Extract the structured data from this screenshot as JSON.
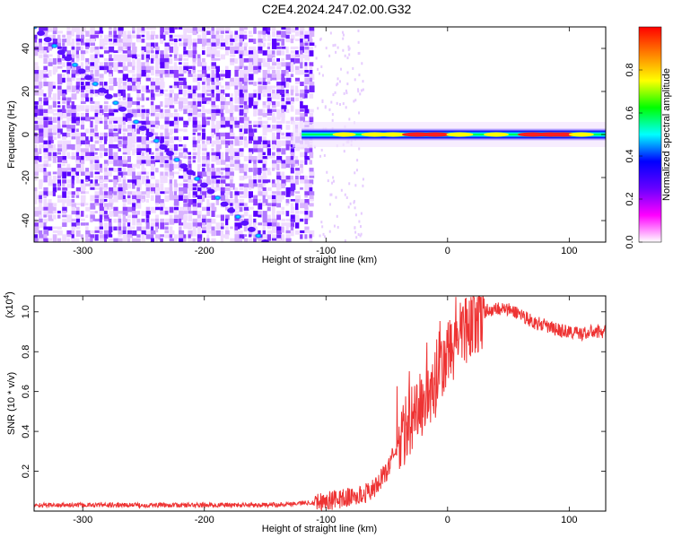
{
  "title": "C2E4.2024.247.02.00.G32",
  "chart_data": [
    {
      "type": "heatmap",
      "xlabel": "Height of straight line (km)",
      "ylabel": "Frequency (Hz)",
      "xlim": [
        -340,
        130
      ],
      "ylim": [
        -50,
        50
      ],
      "xticks": [
        -300,
        -200,
        -100,
        0,
        100
      ],
      "yticks": [
        -40,
        -20,
        0,
        20,
        40
      ],
      "colorbar": {
        "label": "Normalized spectral amplitude",
        "range": [
          0,
          1
        ],
        "ticks": [
          0.0,
          0.2,
          0.4,
          0.6,
          0.8
        ],
        "colormap": [
          "#ffffff",
          "#ff00ff",
          "#6600ff",
          "#0000ff",
          "#00ffff",
          "#00ff00",
          "#ffff00",
          "#ff8000",
          "#ff0000"
        ]
      },
      "features": {
        "noise_region_x": [
          -340,
          -110
        ],
        "chirp_line": {
          "x": [
            -340,
            -150
          ],
          "y": [
            50,
            -50
          ],
          "amplitude": 0.15
        },
        "carrier_band": {
          "x": [
            -120,
            130
          ],
          "y_center": 0,
          "amplitude_peak": 1.0
        }
      }
    },
    {
      "type": "line",
      "xlabel": "Height of straight line (km)",
      "ylabel": "SNR (10 * v/v)",
      "scale_label": "(x10",
      "scale_exponent": "4",
      "xlim": [
        -340,
        130
      ],
      "ylim": [
        0,
        1.08
      ],
      "xticks": [
        -300,
        -200,
        -100,
        0,
        100
      ],
      "yticks": [
        0.2,
        0.4,
        0.6,
        0.8,
        1.0
      ],
      "color": "#ee3333",
      "series": [
        {
          "x": [
            -340,
            -300,
            -250,
            -200,
            -150,
            -120,
            -100,
            -90,
            -80,
            -70,
            -60,
            -50,
            -40,
            -30,
            -20,
            -10,
            0,
            10,
            20,
            30,
            40,
            50,
            60,
            70,
            80,
            90,
            100,
            110,
            120,
            130
          ],
          "values": [
            0.03,
            0.03,
            0.03,
            0.03,
            0.03,
            0.04,
            0.05,
            0.06,
            0.07,
            0.08,
            0.12,
            0.2,
            0.35,
            0.45,
            0.55,
            0.62,
            0.78,
            0.88,
            0.95,
            1.0,
            1.02,
            1.01,
            0.99,
            0.95,
            0.93,
            0.91,
            0.9,
            0.89,
            0.9,
            0.9
          ]
        }
      ]
    }
  ]
}
